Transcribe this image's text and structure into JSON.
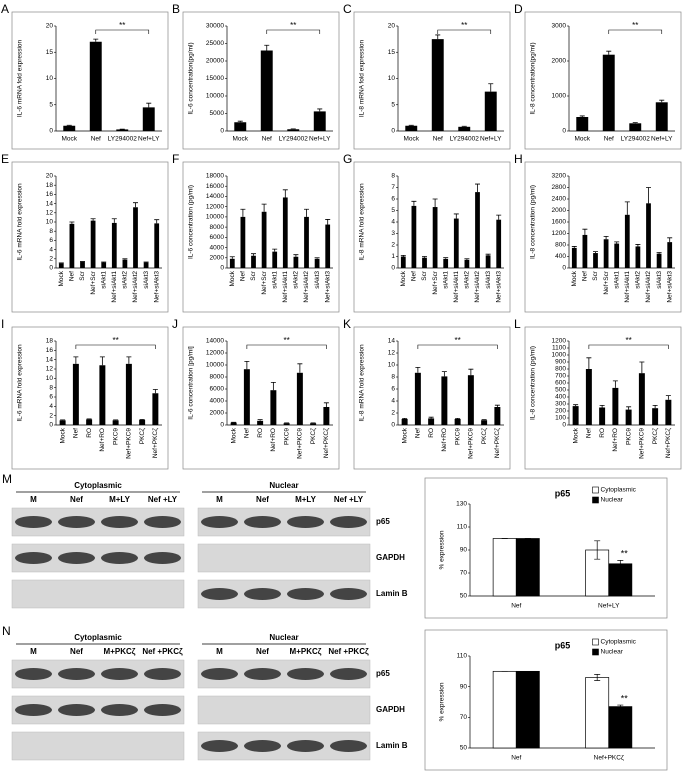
{
  "chart_data": [
    {
      "type": "bar",
      "panel": "A",
      "ylabel": "IL-6 mRNA fold expression",
      "categories": [
        "Mock",
        "Nef",
        "LY294002",
        "Nef+LY"
      ],
      "values": [
        1,
        17,
        0.3,
        4.5
      ],
      "errors": [
        0.1,
        0.5,
        0.05,
        0.8
      ],
      "ylim": [
        0,
        20
      ],
      "yticks": [
        0,
        5,
        10,
        15,
        20
      ],
      "color": "#000000",
      "significance": {
        "label": "**",
        "between": [
          "Nef",
          "Nef+LY"
        ]
      }
    },
    {
      "type": "bar",
      "panel": "B",
      "ylabel": "IL-6 concentration(pg/ml)",
      "categories": [
        "Mock",
        "Nef",
        "LY294002",
        "Nef+LY"
      ],
      "values": [
        2500,
        23000,
        500,
        5600
      ],
      "errors": [
        300,
        1500,
        100,
        700
      ],
      "ylim": [
        0,
        30000
      ],
      "yticks": [
        0,
        5000,
        10000,
        15000,
        20000,
        25000,
        30000
      ],
      "color": "#000000",
      "significance": {
        "label": "**",
        "between": [
          "Nef",
          "Nef+LY"
        ]
      }
    },
    {
      "type": "bar",
      "panel": "C",
      "ylabel": "IL-8 mRNA fold expression",
      "categories": [
        "Mock",
        "Nef",
        "LY294002",
        "Nef+LY"
      ],
      "values": [
        1,
        17.5,
        0.8,
        7.5
      ],
      "errors": [
        0.1,
        0.8,
        0.1,
        1.5
      ],
      "ylim": [
        0,
        20
      ],
      "yticks": [
        0,
        5,
        10,
        15,
        20
      ],
      "color": "#000000",
      "significance": {
        "label": "**",
        "between": [
          "Nef",
          "Nef+LY"
        ]
      }
    },
    {
      "type": "bar",
      "panel": "D",
      "ylabel": "IL-8 concentration(pg/ml)",
      "categories": [
        "Mock",
        "Nef",
        "LY294002",
        "Nef+LY"
      ],
      "values": [
        400,
        2180,
        220,
        820
      ],
      "errors": [
        30,
        100,
        20,
        60
      ],
      "ylim": [
        0,
        3000
      ],
      "yticks": [
        0,
        1000,
        2000,
        3000
      ],
      "color": "#000000",
      "significance": {
        "label": "**",
        "between": [
          "Nef",
          "Nef+LY"
        ]
      }
    },
    {
      "type": "bar",
      "panel": "E",
      "ylabel": "IL-6 mRNA fold expression",
      "categories": [
        "Mock",
        "Nef",
        "Scr",
        "Nef+Scr",
        "siAkt1",
        "Nef+siAkt1",
        "siAkt2",
        "Nef+siAkt2",
        "siAkt3",
        "Nef+siAkt3"
      ],
      "values": [
        1,
        9.6,
        1.3,
        10.3,
        1.2,
        9.8,
        1.8,
        13.2,
        1.2,
        9.7
      ],
      "errors": [
        0.1,
        0.4,
        0.1,
        0.4,
        0.1,
        0.9,
        0.2,
        1,
        0.1,
        0.8
      ],
      "ylim": [
        0,
        20
      ],
      "yticks": [
        0,
        2,
        4,
        6,
        8,
        10,
        12,
        14,
        16,
        18,
        20
      ],
      "color": "#000000"
    },
    {
      "type": "bar",
      "panel": "F",
      "ylabel": "IL-6 concentration (pg/ml)",
      "categories": [
        "Mock",
        "Nef",
        "Scr",
        "Nef+Scr",
        "siAkt1",
        "Nef+siAkt1",
        "siAkt2",
        "Nef+siAkt2",
        "siAkt3",
        "Nef+siAkt3"
      ],
      "values": [
        1800,
        10000,
        2400,
        11000,
        3200,
        13800,
        2200,
        10000,
        1800,
        8500
      ],
      "errors": [
        400,
        1500,
        400,
        1500,
        500,
        1500,
        400,
        1500,
        200,
        1000
      ],
      "ylim": [
        0,
        18000
      ],
      "yticks": [
        0,
        2000,
        4000,
        6000,
        8000,
        10000,
        12000,
        14000,
        16000,
        18000
      ],
      "color": "#000000"
    },
    {
      "type": "bar",
      "panel": "G",
      "ylabel": "IL-8 mRNA fold expression",
      "categories": [
        "Mock",
        "Nef",
        "Scr",
        "Nef+Scr",
        "siAkt1",
        "Nef+siAkt1",
        "siAkt2",
        "Nef+siAkt2",
        "siAkt3",
        "Nef+siAkt3"
      ],
      "values": [
        1,
        5.4,
        0.9,
        5.3,
        0.8,
        4.3,
        0.7,
        6.6,
        1.1,
        4.2
      ],
      "errors": [
        0.1,
        0.4,
        0.1,
        0.7,
        0.1,
        0.4,
        0.1,
        0.7,
        0.1,
        0.4
      ],
      "ylim": [
        0,
        8
      ],
      "yticks": [
        0,
        1,
        2,
        3,
        4,
        5,
        6,
        7,
        8
      ],
      "color": "#000000"
    },
    {
      "type": "bar",
      "panel": "H",
      "ylabel": "IL-8 concentration (pg/ml)",
      "categories": [
        "Mock",
        "Nef",
        "Scr",
        "Nef+Scr",
        "siAkt1",
        "Nef+siAkt1",
        "siAkt2",
        "Nef+siAkt2",
        "siAkt3",
        "Nef+siAkt3"
      ],
      "values": [
        700,
        1150,
        520,
        1000,
        850,
        1850,
        750,
        2250,
        500,
        900
      ],
      "errors": [
        50,
        200,
        50,
        100,
        60,
        450,
        70,
        550,
        40,
        150
      ],
      "ylim": [
        0,
        3200
      ],
      "yticks": [
        0,
        400,
        800,
        1200,
        1600,
        2000,
        2400,
        2800,
        3200
      ],
      "color": "#000000"
    },
    {
      "type": "bar",
      "panel": "I",
      "ylabel": "IL-6 mRNA fold expression",
      "categories": [
        "Mock",
        "Nef",
        "RO",
        "Nef+RO",
        "PKCθ",
        "Nef+PKCθ",
        "PKCζ",
        "Nef+PKCζ"
      ],
      "values": [
        1,
        13.1,
        1.2,
        12.8,
        1,
        13.1,
        1.1,
        6.8
      ],
      "errors": [
        0.1,
        1.5,
        0.1,
        1.8,
        0.1,
        1.5,
        0.1,
        0.8
      ],
      "ylim": [
        0,
        18
      ],
      "yticks": [
        0,
        2,
        4,
        6,
        8,
        10,
        12,
        14,
        16,
        18
      ],
      "color": "#000000",
      "significance": {
        "label": "**",
        "between": [
          "Nef",
          "Nef+PKCζ"
        ]
      }
    },
    {
      "type": "bar",
      "panel": "J",
      "ylabel": "IL-6 concentration [pg/ml]",
      "categories": [
        "Mock",
        "Nef",
        "RO",
        "Nef+RO",
        "PKCθ",
        "Nef+PKCθ",
        "PKCζ",
        "Nef+PKCζ"
      ],
      "values": [
        400,
        9300,
        700,
        5800,
        300,
        8700,
        300,
        3000
      ],
      "errors": [
        50,
        1300,
        200,
        1300,
        50,
        1500,
        50,
        700
      ],
      "ylim": [
        0,
        14000
      ],
      "yticks": [
        0,
        2000,
        4000,
        6000,
        8000,
        10000,
        12000,
        14000
      ],
      "color": "#000000",
      "significance": {
        "label": "**",
        "between": [
          "Nef",
          "Nef+PKCζ"
        ]
      }
    },
    {
      "type": "bar",
      "panel": "K",
      "ylabel": "IL-8 mRNA fold expression",
      "categories": [
        "Mock",
        "Nef",
        "RO",
        "Nef+RO",
        "PKCθ",
        "Nef+PKCθ",
        "PKCζ",
        "Nef+PKCζ"
      ],
      "values": [
        1,
        8.7,
        1.1,
        8.1,
        1,
        8.3,
        0.8,
        3
      ],
      "errors": [
        0.1,
        0.9,
        0.2,
        0.8,
        0.1,
        1,
        0.1,
        0.3
      ],
      "ylim": [
        0,
        14
      ],
      "yticks": [
        0,
        2,
        4,
        6,
        8,
        10,
        12,
        14
      ],
      "color": "#000000",
      "significance": {
        "label": "**",
        "between": [
          "Nef",
          "Nef+PKCζ"
        ]
      }
    },
    {
      "type": "bar",
      "panel": "L",
      "ylabel": "IL-8 concentration (pg/ml)",
      "categories": [
        "Mock",
        "Nef",
        "RO",
        "Nef+RO",
        "PKCθ",
        "Nef+PKCθ",
        "PKCζ",
        "Nef+PKCζ"
      ],
      "values": [
        270,
        800,
        250,
        530,
        220,
        740,
        240,
        360
      ],
      "errors": [
        20,
        160,
        30,
        100,
        40,
        160,
        40,
        60
      ],
      "ylim": [
        0,
        1200
      ],
      "yticks": [
        0,
        100,
        200,
        300,
        400,
        500,
        600,
        700,
        800,
        900,
        1000,
        1100,
        1200
      ],
      "color": "#000000",
      "significance": {
        "label": "**",
        "between": [
          "Nef",
          "Nef+PKCζ"
        ]
      }
    },
    {
      "type": "grouped_bar",
      "panel": "M",
      "title": "p65",
      "ylabel": "% expression",
      "categories": [
        "Nef",
        "Nef+LY"
      ],
      "series": [
        {
          "name": "Cytoplasmic",
          "color": "#ffffff",
          "values": [
            100,
            90
          ],
          "errors": [
            0,
            8
          ]
        },
        {
          "name": "Nuclear",
          "color": "#000000",
          "values": [
            100,
            78
          ],
          "errors": [
            0,
            3
          ]
        }
      ],
      "ylim": [
        50,
        130
      ],
      "yticks": [
        50,
        70,
        90,
        110,
        130
      ],
      "annotations": [
        {
          "text": "**",
          "series": "Nuclear",
          "category": "Nef+LY"
        }
      ],
      "blot": {
        "groups": [
          {
            "title": "Cytoplasmic",
            "lanes": [
              "M",
              "Nef",
              "M+LY",
              "Nef +LY"
            ]
          },
          {
            "title": "Nuclear",
            "lanes": [
              "M",
              "Nef",
              "M+LY",
              "Nef +LY"
            ]
          }
        ],
        "rows": [
          "p65",
          "GAPDH",
          "Lamin B"
        ]
      }
    },
    {
      "type": "grouped_bar",
      "panel": "N",
      "title": "p65",
      "ylabel": "% expression",
      "categories": [
        "Nef",
        "Nef+PKCζ"
      ],
      "series": [
        {
          "name": "Cytoplasmic",
          "color": "#ffffff",
          "values": [
            100,
            96
          ],
          "errors": [
            0,
            2
          ]
        },
        {
          "name": "Nuclear",
          "color": "#000000",
          "values": [
            100,
            77
          ],
          "errors": [
            0,
            1
          ]
        }
      ],
      "ylim": [
        50,
        110
      ],
      "yticks": [
        50,
        70,
        90,
        110
      ],
      "annotations": [
        {
          "text": "**",
          "series": "Nuclear",
          "category": "Nef+PKCζ"
        }
      ],
      "blot": {
        "groups": [
          {
            "title": "Cytoplasmic",
            "lanes": [
              "M",
              "Nef",
              "M+PKCζ",
              "Nef +PKCζ"
            ]
          },
          {
            "title": "Nuclear",
            "lanes": [
              "M",
              "Nef",
              "M+PKCζ",
              "Nef +PKCζ"
            ]
          }
        ],
        "rows": [
          "p65",
          "GAPDH",
          "Lamin B"
        ]
      }
    }
  ]
}
